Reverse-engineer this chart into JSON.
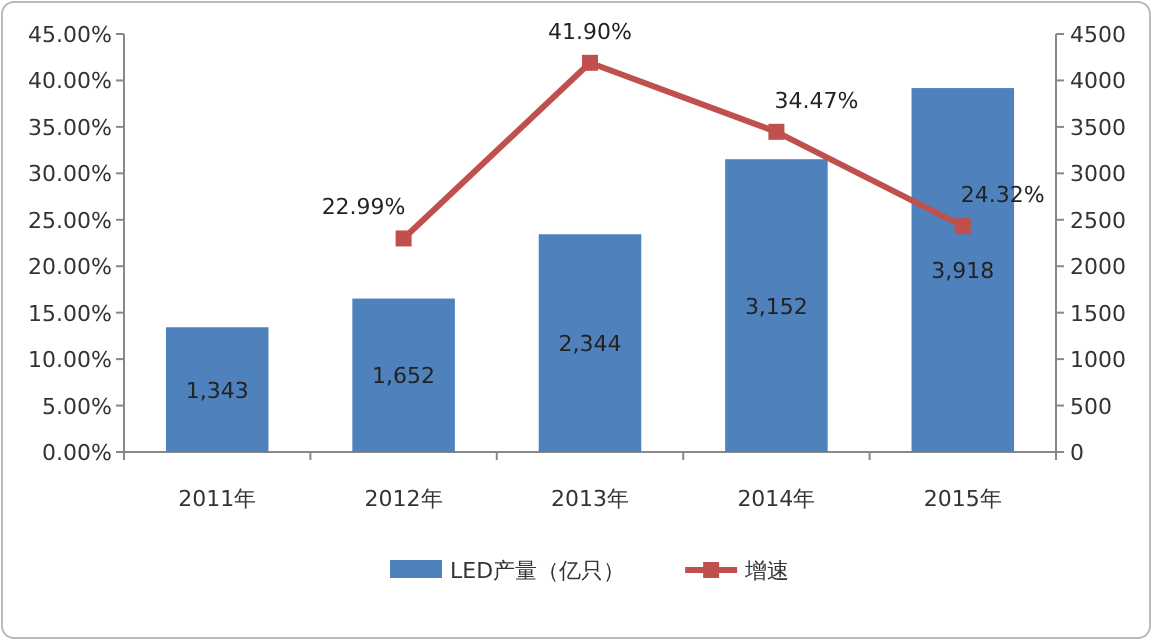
{
  "chart_data": {
    "type": "bar",
    "categories": [
      "2011年",
      "2012年",
      "2013年",
      "2014年",
      "2015年"
    ],
    "series": [
      {
        "name": "LED产量（亿只）",
        "axis": "y2",
        "color": "#4f81bd",
        "values": [
          1343,
          1652,
          2344,
          3152,
          3918
        ],
        "value_labels": [
          "1,343",
          "1,652",
          "2,344",
          "3,152",
          "3,918"
        ]
      },
      {
        "name": "增速",
        "type": "line",
        "color": "#c0504d",
        "values": [
          null,
          22.99,
          41.9,
          34.47,
          24.32
        ],
        "value_labels": [
          null,
          "22.99%",
          "41.90%",
          "34.47%",
          "24.32%"
        ]
      }
    ],
    "marker": "square",
    "legend": "bottom",
    "grid": false,
    "ylim": [
      0,
      45
    ],
    "yticks": [
      {
        "value": 0,
        "label": "0.00%"
      },
      {
        "value": 5,
        "label": "5.00%"
      },
      {
        "value": 10,
        "label": "10.00%"
      },
      {
        "value": 15,
        "label": "15.00%"
      },
      {
        "value": 20,
        "label": "20.00%"
      },
      {
        "value": 25,
        "label": "25.00%"
      },
      {
        "value": 30,
        "label": "30.00%"
      },
      {
        "value": 35,
        "label": "35.00%"
      },
      {
        "value": 40,
        "label": "40.00%"
      },
      {
        "value": 45,
        "label": "45.00%"
      }
    ],
    "y2lim": [
      0,
      4500
    ],
    "y2ticks": [
      0,
      500,
      1000,
      1500,
      2000,
      2500,
      3000,
      3500,
      4000,
      4500
    ]
  }
}
